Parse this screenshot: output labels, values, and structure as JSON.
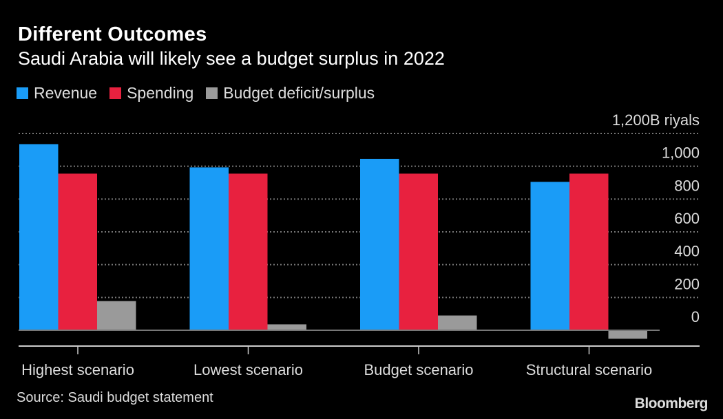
{
  "chart_data": {
    "type": "bar",
    "title": "Different Outcomes",
    "subtitle": "Saudi Arabia will likely see a budget surplus in 2022",
    "categories": [
      "Highest scenario",
      "Lowest scenario",
      "Budget scenario",
      "Structural scenario"
    ],
    "series": [
      {
        "name": "Revenue",
        "color": "#1a9cf7",
        "values": [
          1135,
          993,
          1045,
          905
        ]
      },
      {
        "name": "Spending",
        "color": "#e8213f",
        "values": [
          955,
          955,
          955,
          955
        ]
      },
      {
        "name": "Budget deficit/surplus",
        "color": "#9a9a9a",
        "values": [
          178,
          36,
          90,
          -52
        ]
      }
    ],
    "yaxis": {
      "unit_label": "1,200B riyals",
      "ticks": [
        0,
        200,
        400,
        600,
        800,
        1000,
        1200
      ],
      "tick_labels": [
        "0",
        "200",
        "400",
        "600",
        "800",
        "1,000",
        "1,200B riyals"
      ],
      "ylim": [
        -100,
        1200
      ],
      "position": "right"
    },
    "grid": true,
    "legend_position": "top-left"
  },
  "source": "Source: Saudi budget statement",
  "logo": "Bloomberg"
}
